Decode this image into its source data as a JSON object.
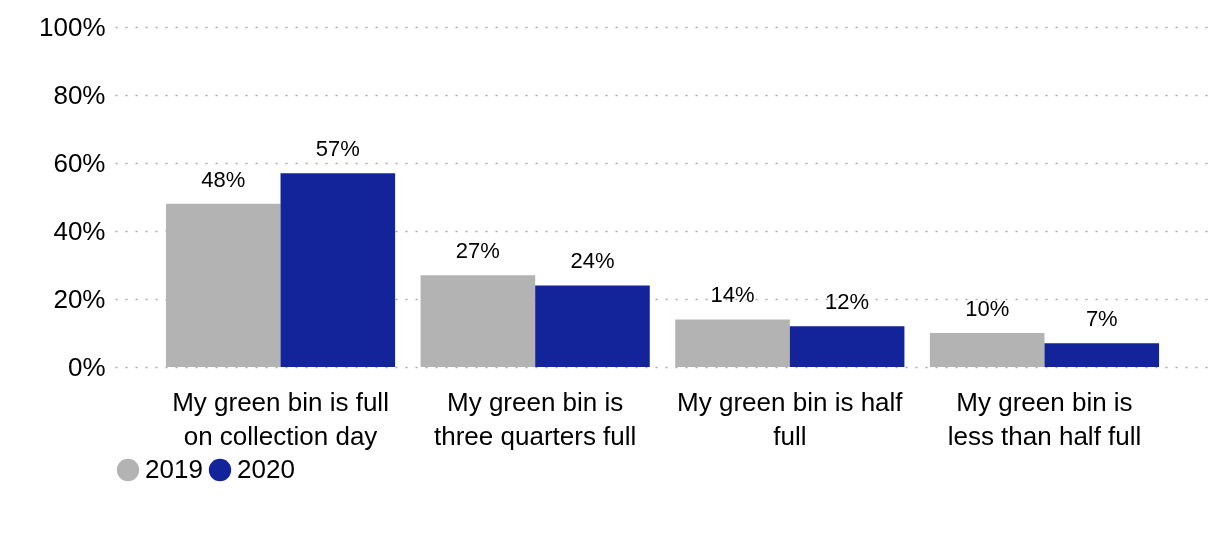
{
  "chart_data": {
    "type": "bar",
    "categories": [
      "My green bin is full on collection day",
      "My green bin is three quarters full",
      "My green bin is half full",
      "My green bin is less than half full"
    ],
    "series": [
      {
        "name": "2019",
        "color": "#b3b3b3",
        "values": [
          48,
          27,
          14,
          10
        ],
        "value_labels": [
          "48%",
          "27%",
          "14%",
          "10%"
        ]
      },
      {
        "name": "2020",
        "color": "#13249a",
        "values": [
          57,
          24,
          12,
          7
        ],
        "value_labels": [
          "57%",
          "24%",
          "12%",
          "7%"
        ]
      }
    ],
    "ylim": [
      0,
      100
    ],
    "yticks": [
      {
        "value": 0,
        "label": "0%"
      },
      {
        "value": 20,
        "label": "20%"
      },
      {
        "value": 40,
        "label": "40%"
      },
      {
        "value": 60,
        "label": "60%"
      },
      {
        "value": 80,
        "label": "80%"
      },
      {
        "value": 100,
        "label": "100%"
      }
    ],
    "grid": "y",
    "legend": "bottom"
  }
}
